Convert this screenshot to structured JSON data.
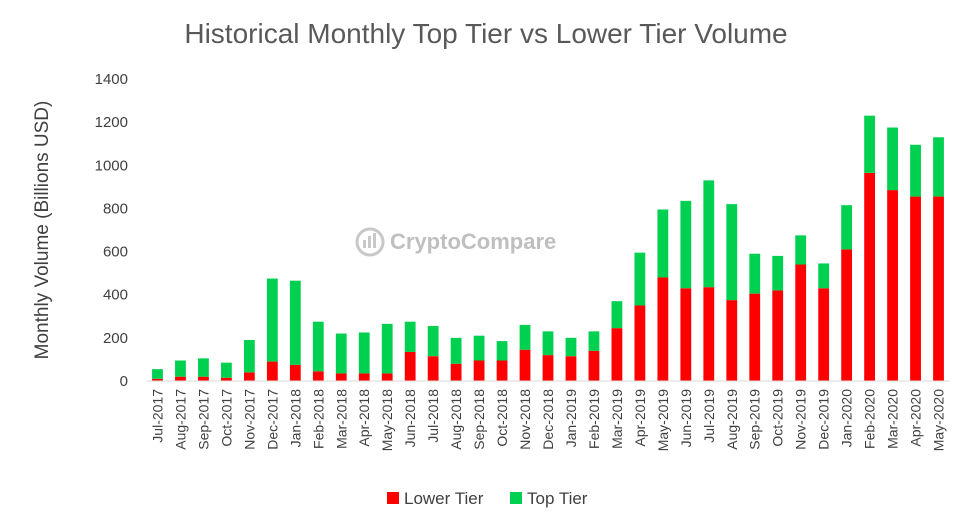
{
  "chart_data": {
    "type": "bar",
    "stacked": true,
    "title": "Historical Monthly Top Tier vs Lower Tier Volume",
    "ylabel": "Monthly Volume (Billions USD)",
    "xlabel": "",
    "ylim": [
      0,
      1400
    ],
    "yticks": [
      0,
      200,
      400,
      600,
      800,
      1000,
      1200,
      1400
    ],
    "grid": false,
    "legend_position": "bottom",
    "watermark": "CryptoCompare",
    "categories": [
      "Jul-2017",
      "Aug-2017",
      "Sep-2017",
      "Oct-2017",
      "Nov-2017",
      "Dec-2017",
      "Jan-2018",
      "Feb-2018",
      "Mar-2018",
      "Apr-2018",
      "May-2018",
      "Jun-2018",
      "Jul-2018",
      "Aug-2018",
      "Sep-2018",
      "Oct-2018",
      "Nov-2018",
      "Dec-2018",
      "Jan-2019",
      "Feb-2019",
      "Mar-2019",
      "Apr-2019",
      "May-2019",
      "Jun-2019",
      "Jul-2019",
      "Aug-2019",
      "Sep-2019",
      "Oct-2019",
      "Nov-2019",
      "Dec-2019",
      "Jan-2020",
      "Feb-2020",
      "Mar-2020",
      "Apr-2020",
      "May-2020"
    ],
    "series": [
      {
        "name": "Lower Tier",
        "color": "#ff0000",
        "values": [
          10,
          20,
          20,
          15,
          40,
          90,
          75,
          45,
          35,
          35,
          35,
          135,
          115,
          80,
          95,
          95,
          145,
          120,
          115,
          140,
          245,
          350,
          480,
          430,
          435,
          375,
          405,
          420,
          540,
          430,
          610,
          965,
          885,
          855,
          855
        ]
      },
      {
        "name": "Top Tier",
        "color": "#00d050",
        "values": [
          45,
          75,
          85,
          70,
          150,
          385,
          390,
          230,
          185,
          190,
          230,
          140,
          140,
          120,
          115,
          90,
          115,
          110,
          85,
          90,
          125,
          245,
          315,
          405,
          495,
          445,
          185,
          160,
          135,
          115,
          205,
          265,
          290,
          240,
          275
        ]
      }
    ]
  }
}
